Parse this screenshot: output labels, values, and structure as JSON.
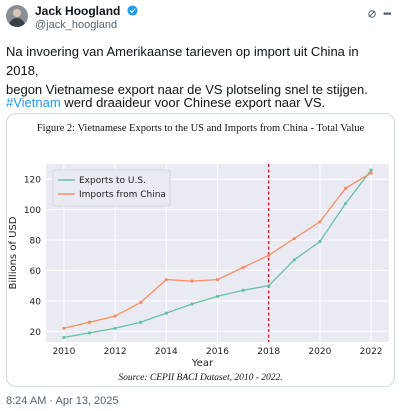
{
  "author": {
    "name": "Jack Hoogland",
    "handle": "@jack_hoogland"
  },
  "tweet": {
    "text_line1": "Na invoering van Amerikaanse tarieven op import uit China in 2018,\nbegon Vietnamese export naar de VS plotseling snel te stijgen.",
    "hashtag": "#Vietnam",
    "text_line2": " werd draaideur voor Chinese export naar VS."
  },
  "timestamp": "8:24 AM · Apr 13, 2025",
  "icons": [
    "verified-badge-icon",
    "grok-icon",
    "more-icon"
  ],
  "colors": {
    "exports": "#66c2a5",
    "imports": "#fc8d62",
    "marker_2018": "#cc0000",
    "link": "#1d9bf0"
  },
  "chart_data": {
    "type": "line",
    "title": "Figure 2: Vietnamese Exports to the US and Imports from China - Total Value",
    "xlabel": "Year",
    "ylabel": "Billions of USD",
    "x": [
      2010,
      2011,
      2012,
      2013,
      2014,
      2015,
      2016,
      2017,
      2018,
      2019,
      2020,
      2021,
      2022
    ],
    "xticks": [
      "2010",
      "2012",
      "2014",
      "2016",
      "2018",
      "2020",
      "2022"
    ],
    "yticks": [
      "20",
      "40",
      "60",
      "80",
      "100",
      "120"
    ],
    "xlim": [
      2009.3,
      2022.7
    ],
    "ylim": [
      13,
      130
    ],
    "grid": true,
    "legend_position": "top-left",
    "series": [
      {
        "name": "Exports to U.S.",
        "color": "#66c2a5",
        "values": [
          16,
          19,
          22,
          26,
          32,
          38,
          43,
          47,
          50,
          67,
          79,
          104,
          126
        ]
      },
      {
        "name": "Imports from China",
        "color": "#fc8d62",
        "values": [
          22,
          26,
          30,
          39,
          54,
          53,
          54,
          62,
          70,
          81,
          92,
          114,
          124
        ]
      }
    ],
    "vline": {
      "x": 2018,
      "style": "dashed",
      "color": "#cc0000"
    },
    "source": "Source: CEPII BACI Dataset, 2010 - 2022."
  }
}
